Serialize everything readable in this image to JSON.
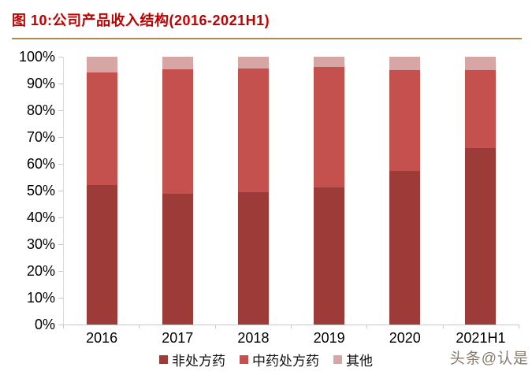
{
  "header": {
    "title": "图 10:公司产品收入结构(2016-2021H1)"
  },
  "watermark": "头条@认是",
  "colors": {
    "title": "#c00000",
    "divider": "#b2884b",
    "axis": "#c9c9c9",
    "axis_light": "#d9d9d9"
  },
  "chart_data": {
    "type": "bar",
    "stacked": true,
    "title": "公司产品收入结构(2016-2021H1)",
    "categories": [
      "2016",
      "2017",
      "2018",
      "2019",
      "2020",
      "2021H1"
    ],
    "series": [
      {
        "name": "非处方药",
        "color": "#9c3b37",
        "values": [
          52.0,
          48.7,
          49.3,
          51.2,
          57.3,
          66.0
        ]
      },
      {
        "name": "中药处方药",
        "color": "#c4514d",
        "values": [
          42.0,
          46.5,
          46.3,
          45.0,
          37.7,
          29.0
        ]
      },
      {
        "name": "其他",
        "color": "#d7a6a4",
        "values": [
          6.0,
          4.8,
          4.4,
          3.8,
          5.0,
          5.0
        ]
      }
    ],
    "xlabel": "",
    "ylabel": "",
    "ylim": [
      0,
      100
    ],
    "ytick_step": 10,
    "ytick_labels": [
      "0%",
      "10%",
      "20%",
      "30%",
      "40%",
      "50%",
      "60%",
      "70%",
      "80%",
      "90%",
      "100%"
    ],
    "grid": false,
    "legend_position": "bottom"
  }
}
